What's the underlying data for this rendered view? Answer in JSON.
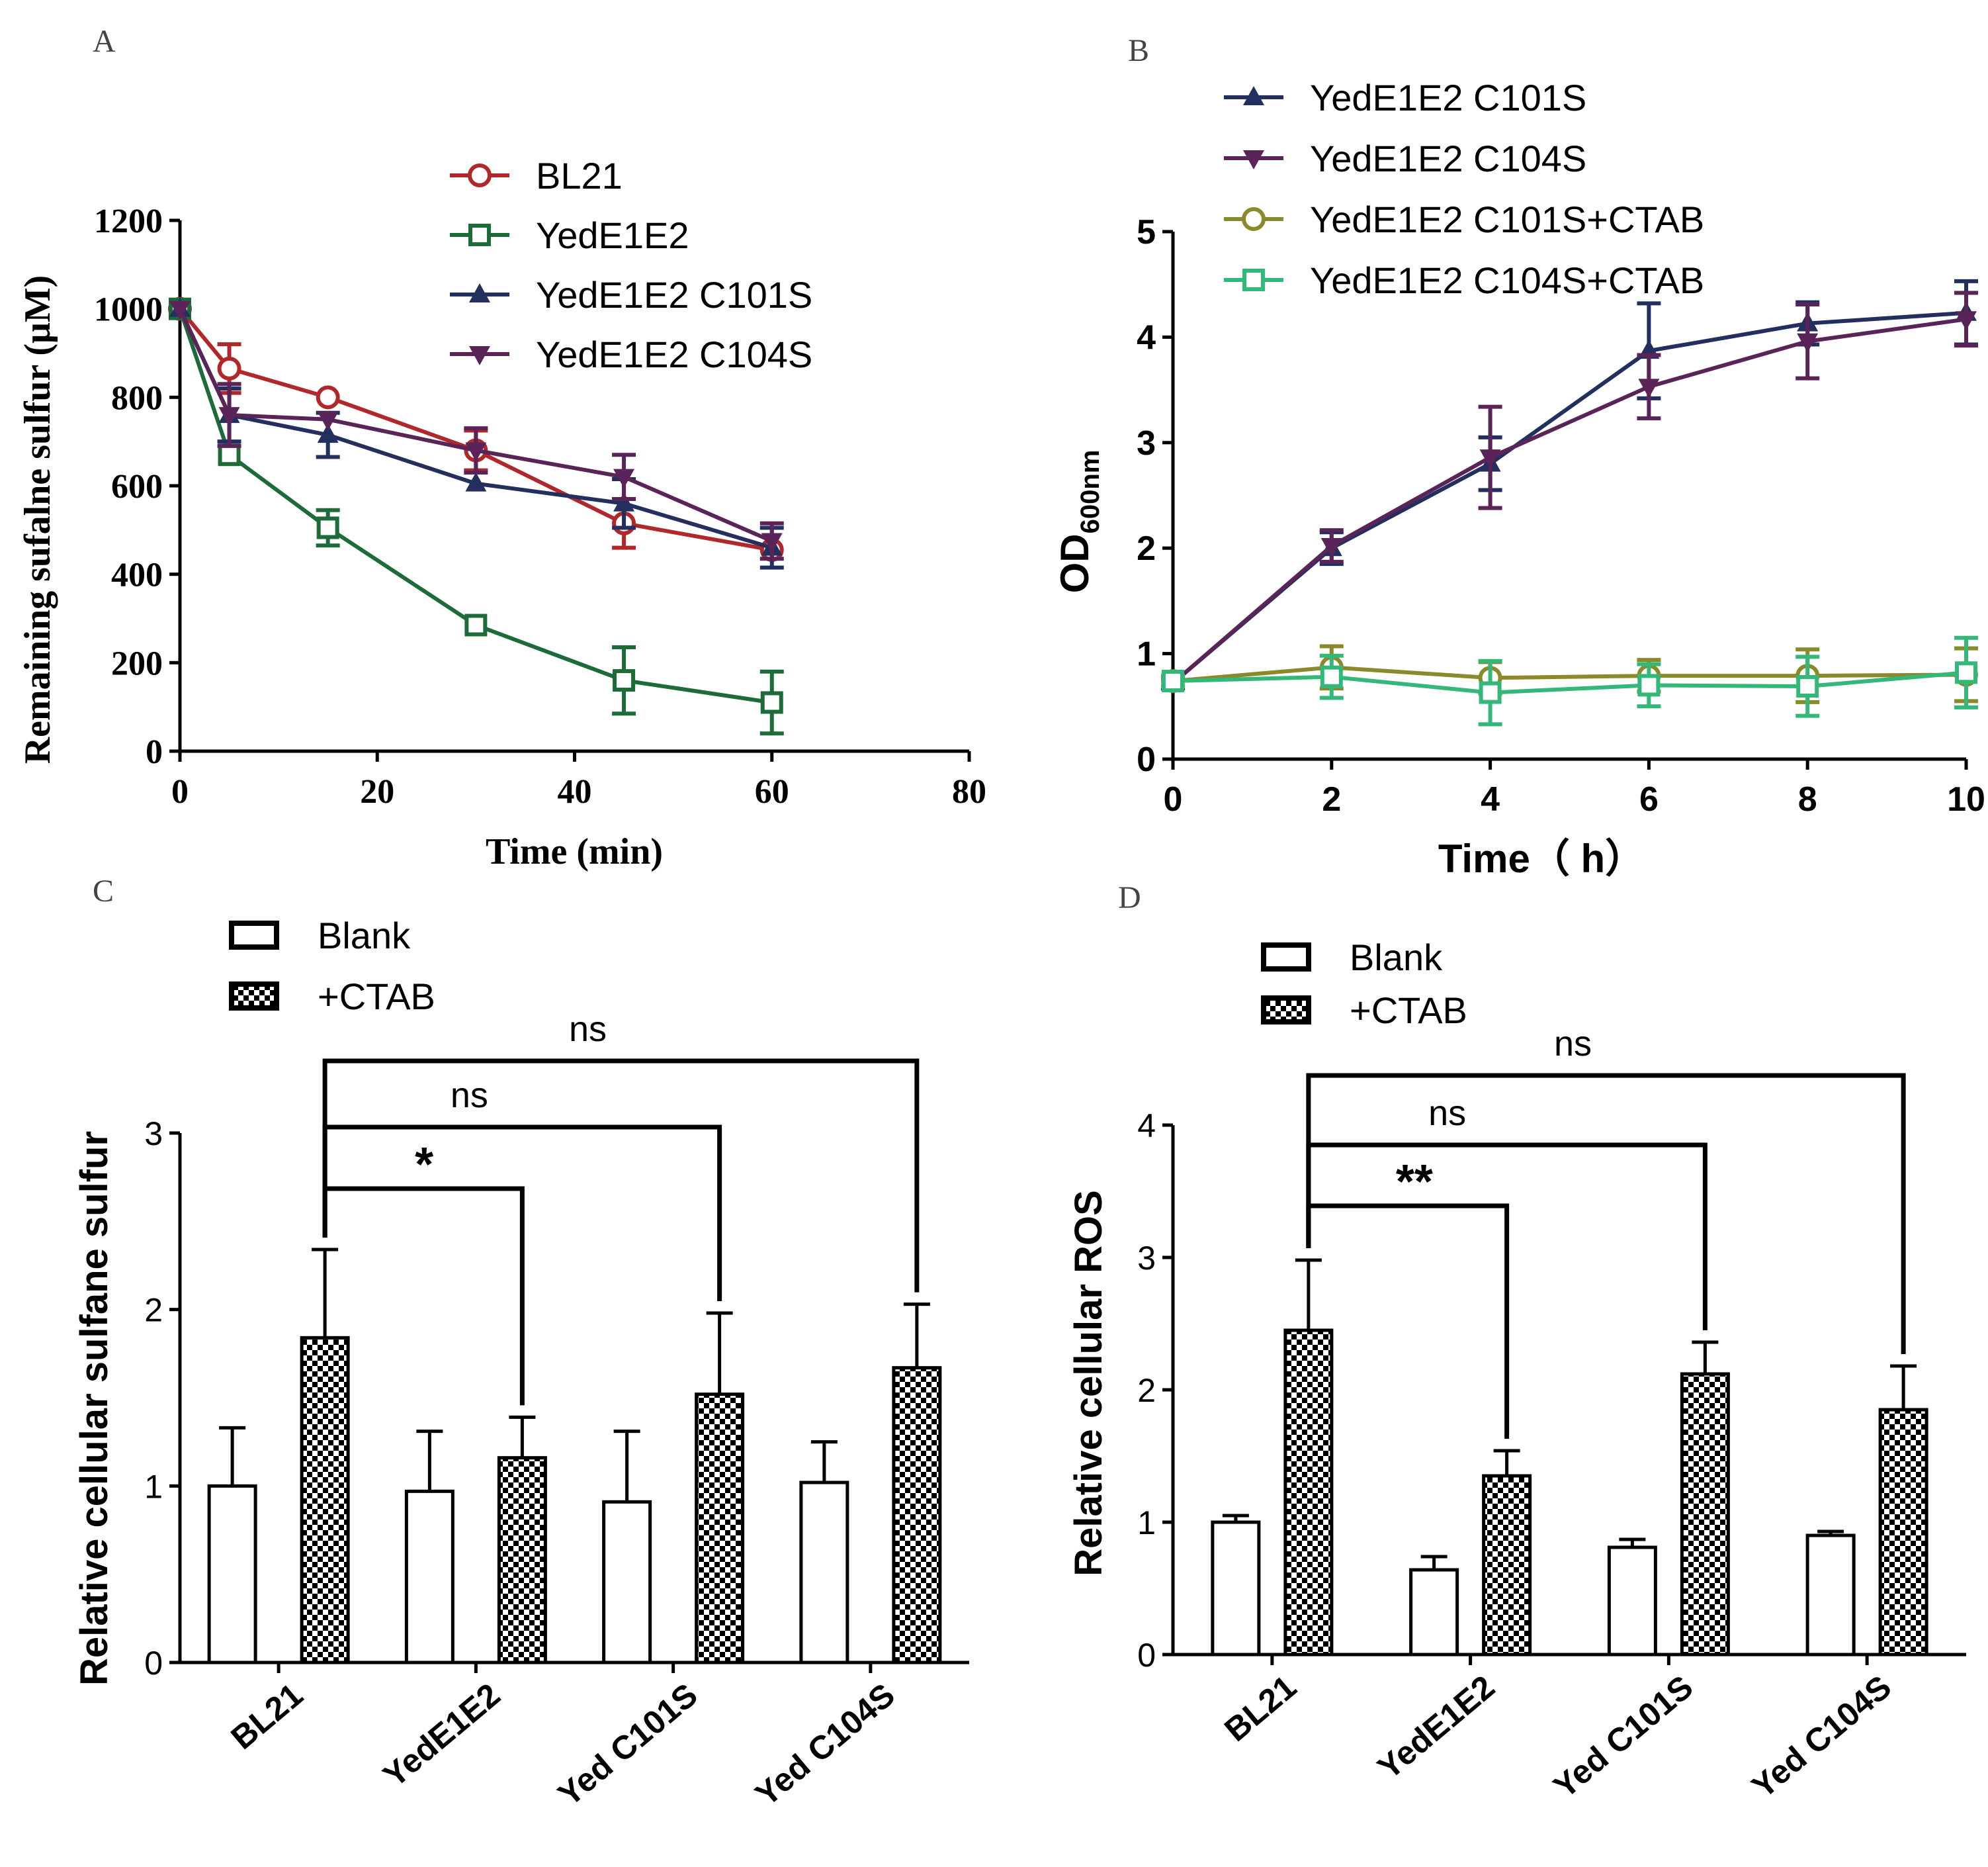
{
  "panels": {
    "A": {
      "letter": "A"
    },
    "B": {
      "letter": "B"
    },
    "C": {
      "letter": "C"
    },
    "D": {
      "letter": "D"
    }
  },
  "colors": {
    "bl21": "#b0282a",
    "yede1e2": "#1e6b3a",
    "c101s": "#23305f",
    "c104s": "#5b2458",
    "c101s_ctab": "#8a8a2a",
    "c104s_ctab": "#33b87a",
    "bar": "#000000"
  },
  "chart_data": [
    {
      "id": "A",
      "type": "line",
      "title": "",
      "xlabel": "Time (min)",
      "ylabel": "Remaining sufalne sulfur  (μM)",
      "xlim": [
        0,
        80
      ],
      "ylim": [
        0,
        1200
      ],
      "xticks": [
        0,
        20,
        40,
        60,
        80
      ],
      "yticks": [
        0,
        200,
        400,
        600,
        800,
        1000,
        1200
      ],
      "grid": false,
      "legend_position": "top-right",
      "series": [
        {
          "name": "BL21",
          "marker": "circle-open",
          "color_key": "bl21",
          "x": [
            0,
            5,
            15,
            30,
            45,
            60
          ],
          "y": [
            1000,
            865,
            800,
            680,
            515,
            455
          ],
          "err": [
            0,
            55,
            0,
            45,
            55,
            0
          ]
        },
        {
          "name": "YedE1E2",
          "marker": "square-open",
          "color_key": "yede1e2",
          "x": [
            0,
            5,
            15,
            30,
            45,
            60
          ],
          "y": [
            1000,
            670,
            505,
            285,
            160,
            110
          ],
          "err": [
            0,
            0,
            40,
            0,
            75,
            70
          ]
        },
        {
          "name": "YedE1E2 C101S",
          "marker": "triangle-up",
          "color_key": "c101s",
          "x": [
            0,
            5,
            15,
            30,
            45,
            60
          ],
          "y": [
            1000,
            760,
            715,
            605,
            560,
            460
          ],
          "err": [
            0,
            60,
            50,
            0,
            55,
            45
          ]
        },
        {
          "name": "YedE1E2 C104S",
          "marker": "triangle-down",
          "color_key": "c104s",
          "x": [
            0,
            5,
            15,
            30,
            45,
            60
          ],
          "y": [
            1000,
            760,
            750,
            680,
            620,
            475
          ],
          "err": [
            0,
            70,
            0,
            50,
            50,
            40
          ]
        }
      ]
    },
    {
      "id": "B",
      "type": "line",
      "title": "",
      "xlabel": "Time（ h）",
      "ylabel_main": "OD",
      "ylabel_sub": "600nm",
      "xlim": [
        0,
        10
      ],
      "ylim": [
        0,
        5
      ],
      "xticks": [
        0,
        2,
        4,
        6,
        8,
        10
      ],
      "yticks": [
        0,
        1,
        2,
        3,
        4,
        5
      ],
      "grid": false,
      "legend_position": "top-right",
      "series": [
        {
          "name": "YedE1E2 C101S",
          "marker": "triangle-up",
          "color_key": "c101s",
          "x": [
            0,
            2,
            4,
            6,
            8,
            10
          ],
          "y": [
            0.72,
            2.0,
            2.8,
            3.87,
            4.13,
            4.23
          ],
          "err": [
            0.05,
            0.15,
            0.25,
            0.45,
            0.2,
            0.3
          ]
        },
        {
          "name": "YedE1E2 C104S",
          "marker": "triangle-down",
          "color_key": "c104s",
          "x": [
            0,
            2,
            4,
            6,
            8,
            10
          ],
          "y": [
            0.72,
            2.02,
            2.86,
            3.53,
            3.96,
            4.17
          ],
          "err": [
            0.05,
            0.15,
            0.48,
            0.3,
            0.35,
            0.25
          ]
        },
        {
          "name": "YedE1E2 C101S+CTAB",
          "marker": "circle-open",
          "color_key": "c101s_ctab",
          "x": [
            0,
            2,
            4,
            6,
            8,
            10
          ],
          "y": [
            0.74,
            0.87,
            0.77,
            0.79,
            0.79,
            0.8
          ],
          "err": [
            0.05,
            0.2,
            0.15,
            0.15,
            0.25,
            0.25
          ]
        },
        {
          "name": "YedE1E2 C104S+CTAB",
          "marker": "square-open",
          "color_key": "c104s_ctab",
          "x": [
            0,
            2,
            4,
            6,
            8,
            10
          ],
          "y": [
            0.74,
            0.78,
            0.63,
            0.7,
            0.69,
            0.82
          ],
          "err": [
            0.05,
            0.2,
            0.3,
            0.2,
            0.28,
            0.33
          ]
        }
      ]
    },
    {
      "id": "C",
      "type": "bar",
      "title": "",
      "xlabel": "",
      "ylabel": "Relative cellular sulfane sulfur",
      "ylim": [
        0,
        3
      ],
      "yticks": [
        0,
        1,
        2,
        3
      ],
      "grid": false,
      "legend_position": "top-left",
      "categories": [
        "BL21",
        "YedE1E2",
        "Yed C101S",
        "Yed C104S"
      ],
      "series": [
        {
          "name": "Blank",
          "pattern": "open",
          "values": [
            1.0,
            0.97,
            0.91,
            1.02
          ],
          "err": [
            0.33,
            0.34,
            0.4,
            0.23
          ]
        },
        {
          "name": "+CTAB",
          "pattern": "checker",
          "values": [
            1.84,
            1.16,
            1.52,
            1.67
          ],
          "err": [
            0.5,
            0.23,
            0.46,
            0.36
          ]
        }
      ],
      "significance": [
        {
          "from_category": 0,
          "to_category": 1,
          "label": "*",
          "level": 0
        },
        {
          "from_category": 0,
          "to_category": 2,
          "label": "ns",
          "level": 1
        },
        {
          "from_category": 0,
          "to_category": 3,
          "label": "ns",
          "level": 2
        }
      ]
    },
    {
      "id": "D",
      "type": "bar",
      "title": "",
      "xlabel": "",
      "ylabel": "Relative cellular ROS",
      "ylim": [
        0,
        4
      ],
      "yticks": [
        0,
        1,
        2,
        3,
        4
      ],
      "grid": false,
      "legend_position": "top-left",
      "categories": [
        "BL21",
        "YedE1E2",
        "Yed C101S",
        "Yed C104S"
      ],
      "series": [
        {
          "name": "Blank",
          "pattern": "open",
          "values": [
            1.0,
            0.64,
            0.81,
            0.9
          ],
          "err": [
            0.05,
            0.1,
            0.06,
            0.03
          ]
        },
        {
          "name": "+CTAB",
          "pattern": "checker",
          "values": [
            2.45,
            1.35,
            2.12,
            1.85
          ],
          "err": [
            0.53,
            0.19,
            0.24,
            0.33
          ]
        }
      ],
      "significance": [
        {
          "from_category": 0,
          "to_category": 1,
          "label": "**",
          "level": 0
        },
        {
          "from_category": 0,
          "to_category": 2,
          "label": "ns",
          "level": 1
        },
        {
          "from_category": 0,
          "to_category": 3,
          "label": "ns",
          "level": 2
        }
      ]
    }
  ]
}
